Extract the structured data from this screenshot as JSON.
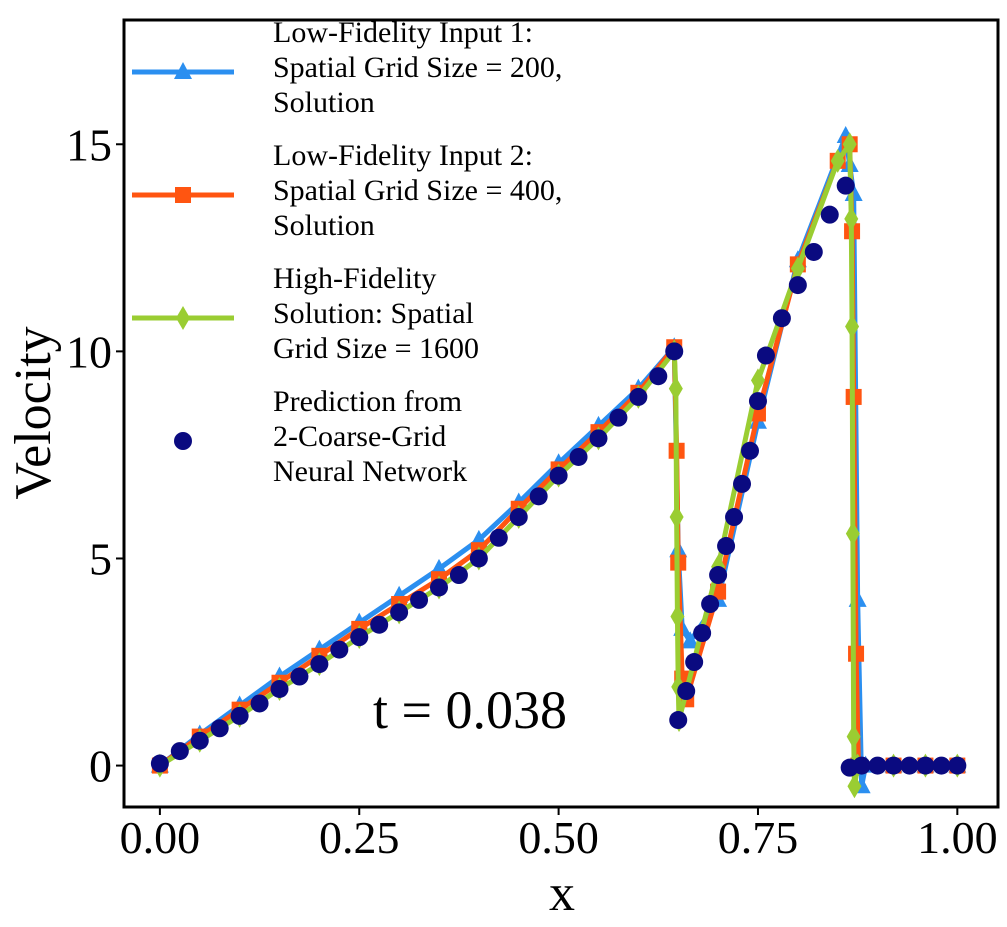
{
  "chart_data": {
    "type": "line",
    "x_label": "x",
    "y_label": "Velocity",
    "annotation": "t = 0.038",
    "xlim": [
      -0.045,
      1.051
    ],
    "ylim": [
      -1,
      18
    ],
    "xticks": [
      {
        "value": 0,
        "label": "0.00"
      },
      {
        "value": 0.25,
        "label": "0.25"
      },
      {
        "value": 0.5,
        "label": "0.50"
      },
      {
        "value": 0.75,
        "label": "0.75"
      },
      {
        "value": 1,
        "label": "1.00"
      }
    ],
    "yticks": [
      0,
      5,
      10,
      15
    ],
    "legend": "upper left",
    "series": [
      {
        "name": "Low-Fidelity Input 1:\nSpatial Grid Size = 200,\nSolution",
        "color": "#2b8ff0",
        "marker": "triangle",
        "line": true,
        "x": [
          0,
          0.05,
          0.1,
          0.15,
          0.2,
          0.25,
          0.3,
          0.35,
          0.4,
          0.45,
          0.5,
          0.55,
          0.6,
          0.645,
          0.65,
          0.655,
          0.665,
          0.7,
          0.75,
          0.8,
          0.86,
          0.865,
          0.87,
          0.875,
          0.88,
          0.885,
          0.92,
          0.96,
          1
        ],
        "values": [
          0,
          0.75,
          1.45,
          2.15,
          2.8,
          3.45,
          4.1,
          4.75,
          5.45,
          6.35,
          7.3,
          8.2,
          9.1,
          10.1,
          5.2,
          3.3,
          3.0,
          4.0,
          8.3,
          12.2,
          15.2,
          14.5,
          13.8,
          4.0,
          -0.5,
          0,
          0,
          0,
          0
        ]
      },
      {
        "name": "Low-Fidelity Input 2:\nSpatial Grid Size = 400,\nSolution",
        "color": "#ff5511",
        "marker": "square",
        "line": true,
        "x": [
          0,
          0.05,
          0.1,
          0.15,
          0.2,
          0.25,
          0.3,
          0.35,
          0.4,
          0.45,
          0.5,
          0.55,
          0.6,
          0.645,
          0.648,
          0.65,
          0.655,
          0.66,
          0.7,
          0.75,
          0.8,
          0.85,
          0.865,
          0.868,
          0.87,
          0.873,
          0.876,
          0.92,
          0.96,
          1
        ],
        "values": [
          0,
          0.7,
          1.35,
          2.0,
          2.65,
          3.3,
          3.9,
          4.5,
          5.2,
          6.2,
          7.15,
          8.05,
          9.0,
          10.1,
          7.6,
          4.9,
          2.1,
          1.6,
          4.2,
          8.5,
          12.1,
          14.6,
          15.0,
          12.9,
          8.9,
          2.7,
          0,
          0,
          0,
          0
        ]
      },
      {
        "name": "High-Fidelity\nSolution: Spatial\nGrid Size = 1600",
        "color": "#9acd32",
        "marker": "diamond",
        "line": true,
        "x": [
          0,
          0.05,
          0.1,
          0.15,
          0.2,
          0.25,
          0.3,
          0.35,
          0.4,
          0.45,
          0.5,
          0.55,
          0.6,
          0.645,
          0.647,
          0.648,
          0.649,
          0.65,
          0.651,
          0.7,
          0.75,
          0.8,
          0.85,
          0.865,
          0.867,
          0.868,
          0.869,
          0.87,
          0.871,
          0.875,
          0.92,
          0.96,
          1
        ],
        "values": [
          0,
          0.6,
          1.2,
          1.85,
          2.45,
          3.1,
          3.7,
          4.3,
          5.0,
          6.0,
          7.0,
          7.9,
          8.9,
          10.0,
          9.1,
          6.0,
          3.6,
          1.9,
          1.1,
          4.8,
          9.3,
          12.0,
          14.6,
          15.0,
          13.2,
          10.6,
          5.6,
          0.7,
          -0.5,
          0,
          0,
          0,
          0
        ]
      },
      {
        "name": "Prediction from\n2-Coarse-Grid\nNeural Network",
        "color": "#0a0a80",
        "marker": "circle",
        "line": false,
        "x": [
          0,
          0.025,
          0.05,
          0.075,
          0.1,
          0.125,
          0.15,
          0.175,
          0.2,
          0.225,
          0.25,
          0.275,
          0.3,
          0.325,
          0.35,
          0.375,
          0.4,
          0.425,
          0.45,
          0.475,
          0.5,
          0.525,
          0.55,
          0.575,
          0.6,
          0.625,
          0.645,
          0.65,
          0.66,
          0.67,
          0.68,
          0.69,
          0.7,
          0.71,
          0.72,
          0.73,
          0.74,
          0.75,
          0.76,
          0.78,
          0.8,
          0.82,
          0.84,
          0.86,
          0.865,
          0.88,
          0.9,
          0.92,
          0.94,
          0.96,
          0.98,
          1
        ],
        "values": [
          0.05,
          0.35,
          0.6,
          0.9,
          1.2,
          1.5,
          1.85,
          2.15,
          2.45,
          2.8,
          3.1,
          3.4,
          3.7,
          4.0,
          4.3,
          4.6,
          5.0,
          5.5,
          6.0,
          6.5,
          7.0,
          7.45,
          7.9,
          8.4,
          8.9,
          9.4,
          10.0,
          1.1,
          1.8,
          2.5,
          3.2,
          3.9,
          4.6,
          5.3,
          6.0,
          6.8,
          7.6,
          8.8,
          9.9,
          10.8,
          11.6,
          12.4,
          13.3,
          14.0,
          -0.05,
          0,
          0,
          0,
          0,
          0,
          0,
          0
        ]
      }
    ]
  }
}
